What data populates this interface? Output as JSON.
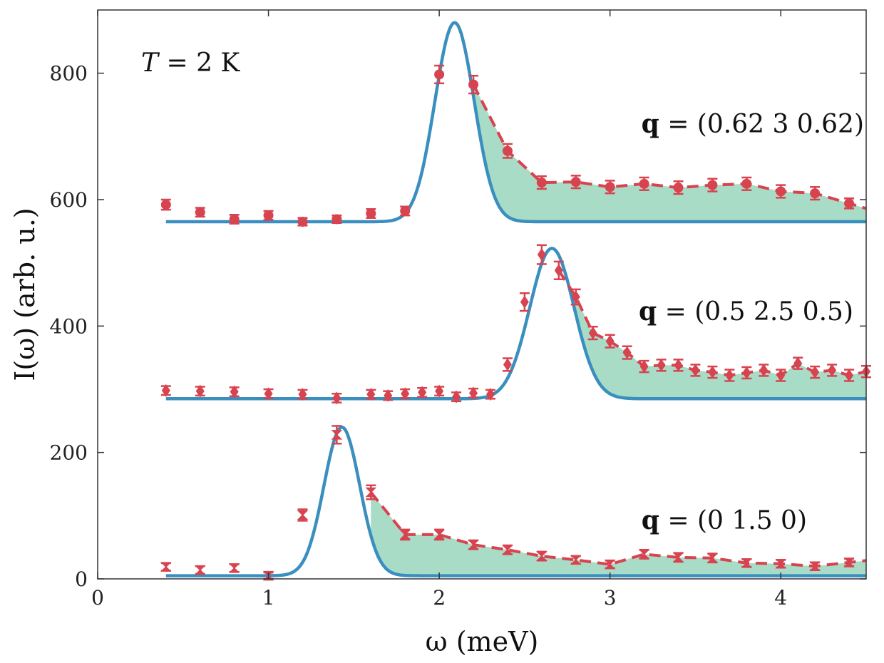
{
  "chart_data": {
    "type": "line",
    "title": "",
    "xlabel": "ω (meV)",
    "ylabel": "I(ω) (arb. u.)",
    "xlim": [
      0,
      4.5
    ],
    "ylim": [
      0,
      900
    ],
    "xticks": [
      0,
      1,
      2,
      3,
      4
    ],
    "yticks": [
      0,
      200,
      400,
      600,
      800
    ],
    "xtick_labels": [
      "0",
      "1",
      "2",
      "3",
      "4"
    ],
    "ytick_labels": [
      "0",
      "200",
      "400",
      "600",
      "800"
    ],
    "grid": false,
    "temperature_label": {
      "var": "T",
      "rest": " = 2 K"
    },
    "colors": {
      "data": "#d7434f",
      "fit": "#3a8fbf",
      "fill": "#a8dcc6",
      "axis": "#333333"
    },
    "series": [
      {
        "name": "q = (0.62 3 0.62)",
        "label_bold": "q",
        "label_rest": " = (0.62 3 0.62)",
        "marker": "circle",
        "baseline": 565,
        "gauss": {
          "amp": 315,
          "center": 2.09,
          "sigma": 0.115
        },
        "x": [
          0.4,
          0.6,
          0.8,
          1.0,
          1.2,
          1.4,
          1.6,
          1.8,
          2.0,
          2.2,
          2.4,
          2.6,
          2.8,
          3.0,
          3.2,
          3.4,
          3.6,
          3.8,
          4.0,
          4.2,
          4.4
        ],
        "y": [
          592,
          580,
          569,
          575,
          565,
          569,
          578,
          582,
          798,
          782,
          677,
          627,
          628,
          620,
          625,
          619,
          623,
          625,
          613,
          610,
          594
        ],
        "err": [
          8,
          7,
          7,
          7,
          6,
          6,
          7,
          7,
          14,
          14,
          11,
          10,
          10,
          10,
          10,
          10,
          10,
          10,
          10,
          10,
          8
        ],
        "dashed_from": 2.2,
        "fill_from": 2.2
      },
      {
        "name": "q = (0.5 2.5 0.5)",
        "label_bold": "q",
        "label_rest": " = (0.5 2.5 0.5)",
        "marker": "diamond",
        "baseline": 285,
        "gauss": {
          "amp": 238,
          "center": 2.66,
          "sigma": 0.13
        },
        "x": [
          0.4,
          0.6,
          0.8,
          1.0,
          1.2,
          1.4,
          1.6,
          1.7,
          1.8,
          1.9,
          2.0,
          2.1,
          2.2,
          2.3,
          2.4,
          2.5,
          2.6,
          2.7,
          2.8,
          2.9,
          3.0,
          3.1,
          3.2,
          3.3,
          3.4,
          3.5,
          3.6,
          3.7,
          3.8,
          3.9,
          4.0,
          4.1,
          4.2,
          4.3,
          4.4,
          4.5
        ],
        "y": [
          298,
          297,
          296,
          293,
          292,
          286,
          292,
          290,
          293,
          295,
          297,
          288,
          294,
          292,
          339,
          438,
          513,
          488,
          446,
          389,
          376,
          358,
          336,
          338,
          338,
          330,
          327,
          322,
          326,
          330,
          322,
          341,
          327,
          330,
          322,
          328
        ],
        "err": [
          7,
          7,
          7,
          7,
          7,
          7,
          7,
          7,
          7,
          7,
          7,
          7,
          7,
          7,
          10,
          14,
          15,
          14,
          12,
          10,
          10,
          10,
          9,
          9,
          9,
          9,
          9,
          9,
          9,
          9,
          9,
          9,
          9,
          9,
          9,
          9
        ],
        "dashed_from": 2.7,
        "fill_from": 2.7
      },
      {
        "name": "q = (0 1.5 0)",
        "label_bold": "q",
        "label_rest": " = (0 1.5 0)",
        "marker": "hourglass",
        "baseline": 5,
        "gauss": {
          "amp": 235,
          "center": 1.43,
          "sigma": 0.105
        },
        "x": [
          0.4,
          0.6,
          0.8,
          1.0,
          1.2,
          1.4,
          1.6,
          1.8,
          2.0,
          2.2,
          2.4,
          2.6,
          2.8,
          3.0,
          3.2,
          3.4,
          3.6,
          3.8,
          4.0,
          4.2,
          4.4
        ],
        "y": [
          19,
          14,
          17,
          5,
          101,
          228,
          137,
          70,
          70,
          54,
          46,
          36,
          30,
          23,
          39,
          34,
          33,
          25,
          24,
          20,
          26
        ],
        "err": [
          6,
          6,
          6,
          5,
          9,
          14,
          11,
          8,
          8,
          7,
          7,
          7,
          6,
          6,
          7,
          7,
          7,
          6,
          6,
          6,
          6
        ],
        "dashed_from": 1.6,
        "fill_from": 1.6
      }
    ]
  }
}
